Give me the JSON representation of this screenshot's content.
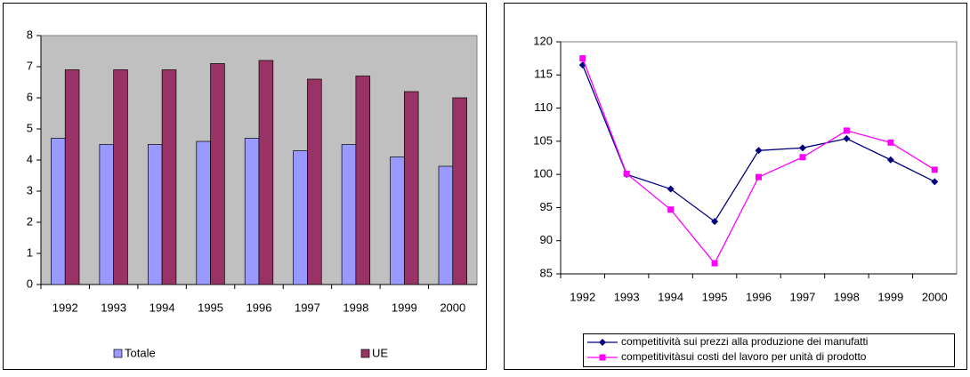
{
  "chart_data": [
    {
      "type": "bar",
      "categories": [
        "1992",
        "1993",
        "1994",
        "1995",
        "1996",
        "1997",
        "1998",
        "1999",
        "2000"
      ],
      "series": [
        {
          "name": "Totale",
          "color": "#9999ff",
          "values": [
            4.7,
            4.5,
            4.5,
            4.6,
            4.7,
            4.3,
            4.5,
            4.1,
            3.8
          ]
        },
        {
          "name": "UE",
          "color": "#993366",
          "values": [
            6.9,
            6.9,
            6.9,
            7.1,
            7.2,
            6.6,
            6.7,
            6.2,
            6.0
          ]
        }
      ],
      "ylim": [
        0,
        8
      ],
      "yticks": [
        0,
        1,
        2,
        3,
        4,
        5,
        6,
        7,
        8
      ],
      "grid": false,
      "plot_background": "#c0c0c0",
      "legend": "bottom"
    },
    {
      "type": "line",
      "categories": [
        "1992",
        "1993",
        "1994",
        "1995",
        "1996",
        "1997",
        "1998",
        "1999",
        "2000"
      ],
      "series": [
        {
          "name": "competitività sui prezzi alla produzione dei manufatti",
          "color": "#000080",
          "marker": "diamond",
          "values": [
            116.5,
            100,
            97.8,
            92.9,
            103.6,
            104,
            105.4,
            102.2,
            98.9
          ]
        },
        {
          "name": "competitivitàsui costi del lavoro per unità di prodotto",
          "color": "#ff00ff",
          "marker": "square",
          "values": [
            117.5,
            100.1,
            94.7,
            86.6,
            99.6,
            102.6,
            106.6,
            104.8,
            100.7
          ]
        }
      ],
      "ylim": [
        85,
        120
      ],
      "yticks": [
        85,
        90,
        95,
        100,
        105,
        110,
        115,
        120
      ],
      "grid": false,
      "plot_background": "#ffffff",
      "legend": "bottom"
    }
  ]
}
